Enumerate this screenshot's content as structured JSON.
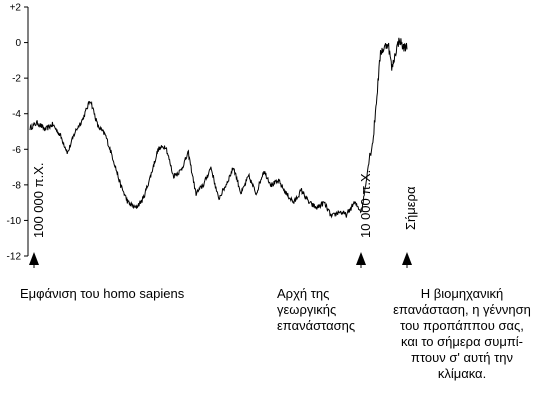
{
  "chart_data": {
    "type": "line",
    "y_ticks": [
      "+2",
      "0",
      "-2",
      "-4",
      "-6",
      "-8",
      "-10",
      "-12"
    ],
    "y_tick_values": [
      2,
      0,
      -2,
      -4,
      -6,
      -8,
      -10,
      -12
    ],
    "ylim": [
      -12,
      2
    ],
    "xlim": [
      -100000,
      0
    ],
    "x_marker_labels": [
      "100 000 π.Χ.",
      "10 000 π.Χ.",
      "Σήμερα"
    ],
    "series": [
      {
        "color": "#000000",
        "x": [
          -100000,
          -98000,
          -96000,
          -94000,
          -92000,
          -90000,
          -88000,
          -86000,
          -84000,
          -82000,
          -80000,
          -78000,
          -76000,
          -74000,
          -72000,
          -70000,
          -68000,
          -66000,
          -64000,
          -62000,
          -60000,
          -58000,
          -56000,
          -54000,
          -52000,
          -50000,
          -48000,
          -46000,
          -44000,
          -42000,
          -40000,
          -38000,
          -36000,
          -34000,
          -32000,
          -30000,
          -28000,
          -26000,
          -24000,
          -22000,
          -20000,
          -18000,
          -16000,
          -14000,
          -12000,
          -11000,
          -10000,
          -9000,
          -8000,
          -7000,
          -6000,
          -5000,
          -4000,
          -3000,
          -2000,
          -1000,
          0
        ],
        "y": [
          -4.8,
          -4.5,
          -4.9,
          -4.6,
          -5.2,
          -6.2,
          -5.0,
          -4.3,
          -3.2,
          -4.7,
          -5.2,
          -6.5,
          -8.0,
          -9.0,
          -9.3,
          -8.8,
          -7.5,
          -6.0,
          -5.8,
          -7.5,
          -7.2,
          -6.2,
          -8.5,
          -8.0,
          -7.0,
          -8.8,
          -8.0,
          -7.0,
          -8.5,
          -7.5,
          -8.5,
          -7.2,
          -8.0,
          -7.8,
          -8.5,
          -9.0,
          -8.3,
          -9.0,
          -9.3,
          -9.0,
          -9.8,
          -9.5,
          -9.7,
          -9.0,
          -9.5,
          -8.0,
          -6.5,
          -5.5,
          -3.0,
          -0.5,
          -0.3,
          0.0,
          -1.5,
          -0.5,
          0.2,
          -0.3,
          -0.2
        ]
      }
    ]
  },
  "annotations": {
    "left": "Εμφάνιση του homo sapiens",
    "middle": "Αρχή της γεωργικής επανάστασης",
    "right": "Η βιομηχανική επανάσταση, η γέννηση του προπάππου σας, και το σήμερα συμπί-πτουν σ' αυτή την κλίμακα."
  }
}
